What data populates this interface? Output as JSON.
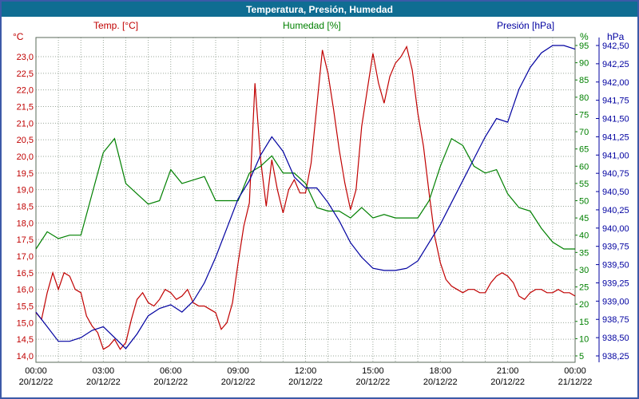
{
  "window": {
    "title": "Temperatura, Presión, Humedad"
  },
  "colors": {
    "titlebar": "#0f6d92",
    "border": "#3c5aa8",
    "temperature": "#c00000",
    "humidity": "#008000",
    "pressure": "#0000a0",
    "grid": "#9aa79a",
    "frame": "#5a6a5a"
  },
  "legend": {
    "temp": "Temp. [°C]",
    "humidity": "Humedad [%]",
    "pressure": "Presión [hPa]"
  },
  "chart_data": {
    "type": "line",
    "title": "Temperatura, Presión, Humedad",
    "grid": "dotted",
    "x_axis": {
      "range_hours": [
        0,
        24
      ],
      "minor_tick_hours": 1,
      "major_tick_hours": 3,
      "major_ticks": [
        "00:00",
        "03:00",
        "06:00",
        "09:00",
        "12:00",
        "15:00",
        "18:00",
        "21:00",
        "00:00"
      ],
      "dates": [
        "20/12/22",
        "20/12/22",
        "20/12/22",
        "20/12/22",
        "20/12/22",
        "20/12/22",
        "20/12/22",
        "20/12/22",
        "21/12/22"
      ]
    },
    "axes": {
      "temperature": {
        "unit": "°C",
        "min": 14.0,
        "max": 23.0,
        "step": 0.5,
        "tick_labels": [
          "23,0",
          "22,5",
          "22,0",
          "21,5",
          "21,0",
          "20,5",
          "20,0",
          "19,5",
          "19,0",
          "18,5",
          "18,0",
          "17,5",
          "17,0",
          "16,5",
          "16,0",
          "15,5",
          "15,0",
          "14,5",
          "14,0"
        ]
      },
      "humidity": {
        "unit": "%",
        "min": 5,
        "max": 95,
        "step": 5,
        "tick_labels": [
          "95",
          "90",
          "85",
          "80",
          "75",
          "70",
          "65",
          "60",
          "55",
          "50",
          "45",
          "40",
          "35",
          "30",
          "25",
          "20",
          "15",
          "10",
          "5"
        ]
      },
      "pressure": {
        "unit": "hPa",
        "min": 938.25,
        "max": 942.5,
        "step": 0.25,
        "tick_labels": [
          "942,50",
          "942,25",
          "942,00",
          "941,75",
          "941,50",
          "941,25",
          "941,00",
          "940,75",
          "940,50",
          "940,25",
          "940,00",
          "939,75",
          "939,50",
          "939,25",
          "939,00",
          "938,75",
          "938,50",
          "938,25"
        ]
      }
    },
    "series": [
      {
        "name": "Temp. [°C]",
        "axis": "temperature",
        "color": "#c00000",
        "x_start": 0,
        "x_step": 0.25,
        "y": [
          15.3,
          15.1,
          15.9,
          16.5,
          16.0,
          16.5,
          16.4,
          16.0,
          15.9,
          15.2,
          14.9,
          14.7,
          14.2,
          14.3,
          14.5,
          14.2,
          14.4,
          15.1,
          15.7,
          15.9,
          15.6,
          15.5,
          15.7,
          16.0,
          15.9,
          15.7,
          15.8,
          16.0,
          15.6,
          15.5,
          15.5,
          15.4,
          15.3,
          14.8,
          15.0,
          15.6,
          16.8,
          17.9,
          18.6,
          22.2,
          19.9,
          18.5,
          19.9,
          19.0,
          18.3,
          19.0,
          19.3,
          18.9,
          18.9,
          19.8,
          21.5,
          23.2,
          22.5,
          21.4,
          20.2,
          19.2,
          18.4,
          19.0,
          20.9,
          22.0,
          23.1,
          22.2,
          21.6,
          22.4,
          22.8,
          23.0,
          23.3,
          22.6,
          21.3,
          20.3,
          18.9,
          17.6,
          16.8,
          16.3,
          16.1,
          16.0,
          15.9,
          16.0,
          16.0,
          15.9,
          15.9,
          16.2,
          16.4,
          16.5,
          16.4,
          16.2,
          15.8,
          15.7,
          15.9,
          16.0,
          16.0,
          15.9,
          15.9,
          16.0,
          15.9,
          15.9,
          15.8
        ]
      },
      {
        "name": "Humedad [%]",
        "axis": "humidity",
        "color": "#008000",
        "x_start": 0,
        "x_step": 0.5,
        "y": [
          36,
          41,
          39,
          40,
          40,
          52,
          64,
          68,
          55,
          52,
          49,
          50,
          59,
          55,
          56,
          57,
          50,
          50,
          50,
          58,
          60,
          63,
          58,
          58,
          55,
          48,
          47,
          47,
          45,
          48,
          45,
          46,
          45,
          45,
          45,
          50,
          60,
          68,
          66,
          60,
          58,
          59,
          52,
          48,
          47,
          42,
          38,
          36,
          36
        ]
      },
      {
        "name": "Presión [hPa]",
        "axis": "pressure",
        "color": "#0000a0",
        "x_start": 0,
        "x_step": 0.5,
        "y": [
          938.85,
          938.65,
          938.45,
          938.45,
          938.5,
          938.6,
          938.65,
          938.5,
          938.35,
          938.55,
          938.8,
          938.9,
          938.95,
          938.85,
          939.0,
          939.25,
          939.6,
          940.0,
          940.4,
          940.65,
          941.0,
          941.25,
          941.05,
          940.7,
          940.55,
          940.55,
          940.35,
          940.1,
          939.8,
          939.6,
          939.45,
          939.42,
          939.42,
          939.45,
          939.55,
          939.8,
          940.05,
          940.35,
          940.65,
          940.95,
          941.25,
          941.5,
          941.45,
          941.9,
          942.2,
          942.4,
          942.5,
          942.5,
          942.45
        ]
      }
    ]
  }
}
